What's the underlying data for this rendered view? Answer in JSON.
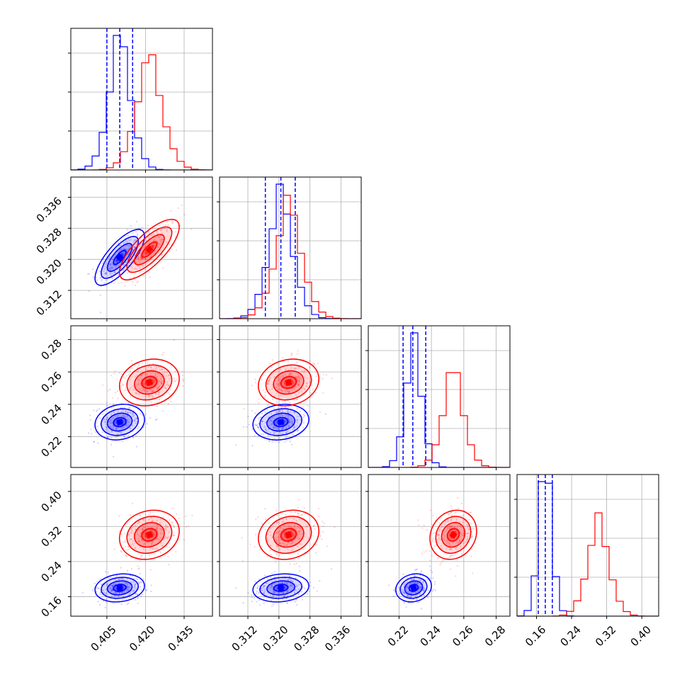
{
  "chart_data": {
    "type": "corner",
    "title": "",
    "parameters": [
      {
        "ticks": [
          0.405,
          0.42,
          0.435
        ],
        "tick_labels": [
          "0.405",
          "0.420",
          "0.435"
        ],
        "range": [
          0.391,
          0.446
        ]
      },
      {
        "ticks": [
          0.312,
          0.32,
          0.328,
          0.336
        ],
        "tick_labels": [
          "0.312",
          "0.320",
          "0.328",
          "0.336"
        ],
        "range": [
          0.3047,
          0.3412
        ]
      },
      {
        "ticks": [
          0.22,
          0.24,
          0.26,
          0.28
        ],
        "tick_labels": [
          "0.22",
          "0.24",
          "0.26",
          "0.28"
        ],
        "range": [
          0.201,
          0.2885
        ]
      },
      {
        "ticks": [
          0.16,
          0.24,
          0.32,
          0.4
        ],
        "tick_labels": [
          "0.16",
          "0.24",
          "0.32",
          "0.40"
        ],
        "range": [
          0.1155,
          0.4385
        ]
      }
    ],
    "series": [
      {
        "color": "#0000ff",
        "mean": [
          0.41,
          0.3205,
          0.229,
          0.18
        ],
        "std": [
          0.0048,
          0.0036,
          0.0055,
          0.016
        ],
        "quantiles": [
          [
            0.405,
            0.41,
            0.415
          ],
          [
            0.3165,
            0.3205,
            0.3242
          ],
          [
            0.2225,
            0.2285,
            0.2365
          ],
          [
            0.164,
            0.18,
            0.196
          ]
        ],
        "correlation": [
          0.75,
          0.2,
          0.15,
          0.2
        ]
      },
      {
        "color": "#ff0000",
        "mean": [
          0.4215,
          0.3225,
          0.2535,
          0.301
        ],
        "std": [
          0.0058,
          0.0039,
          0.0072,
          0.028
        ],
        "correlation": [
          0.75,
          0.2,
          0.15,
          0.2
        ]
      }
    ],
    "histogram_bins": 20,
    "grid": true,
    "legend": "none"
  }
}
